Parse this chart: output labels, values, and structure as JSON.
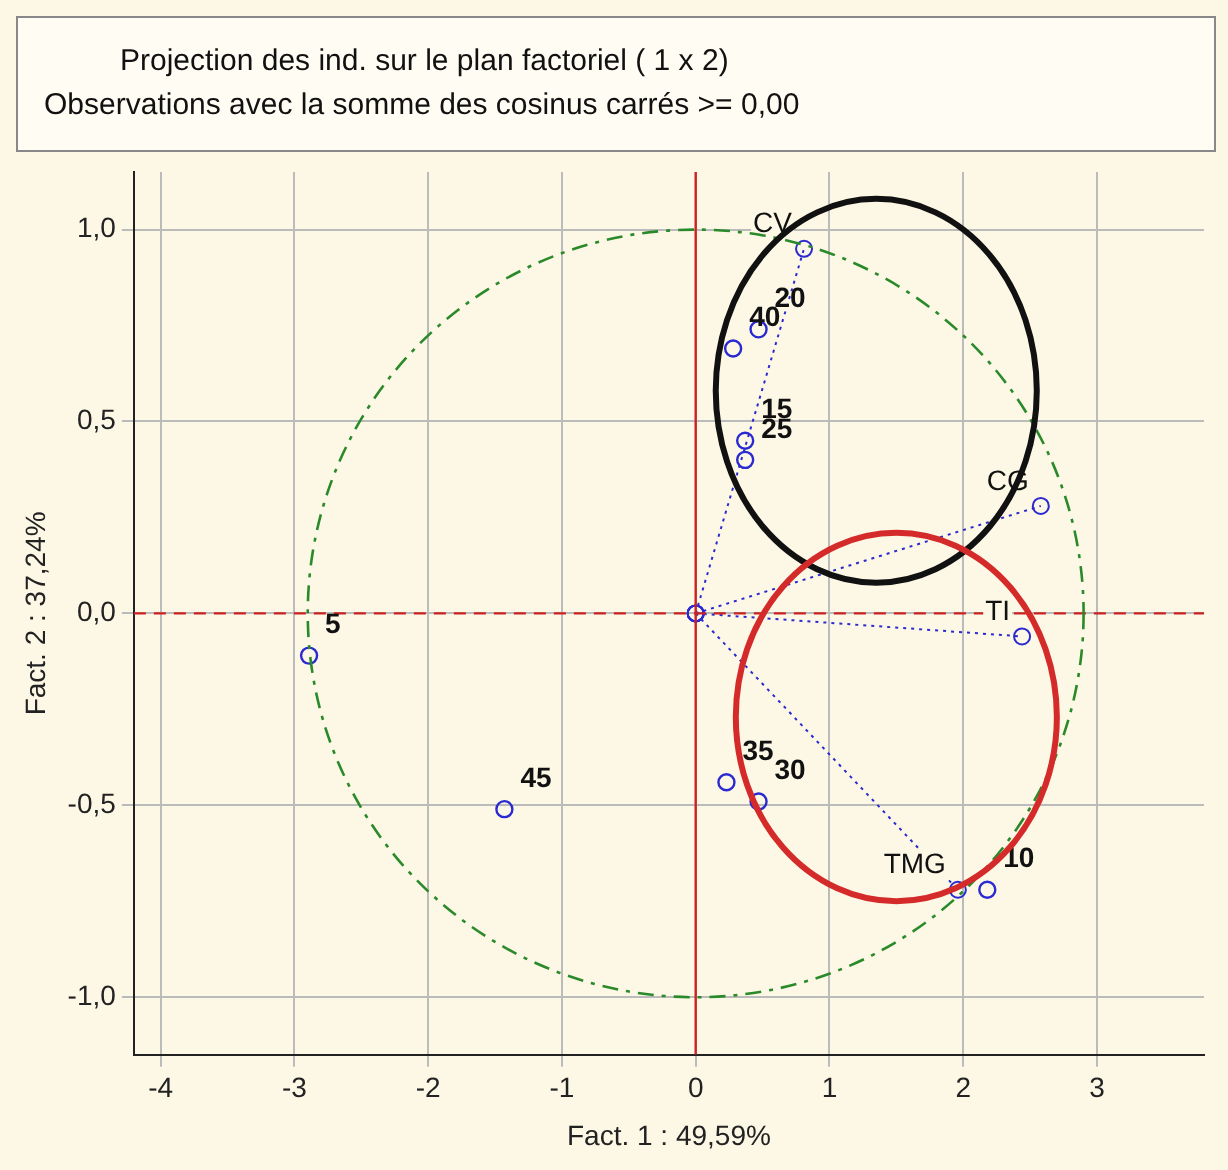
{
  "chart_data": {
    "type": "scatter",
    "title": "Projection des ind. sur le plan factoriel ( 1 x  2)",
    "subtitle": "Observations avec la somme des cosinus carrés >= 0,00",
    "xlabel": "Fact. 1 : 49,59%",
    "ylabel": "Fact. 2 : 37,24%",
    "xlim": [
      -4.2,
      3.8
    ],
    "xticks": [
      -4,
      -3,
      -2,
      -1,
      0,
      1,
      2,
      3
    ],
    "ylim": [
      -1.15,
      1.15
    ],
    "yticks": [
      {
        "value": -1,
        "label": "-1,0"
      },
      {
        "value": -0.5,
        "label": "-0,5"
      },
      {
        "value": 0,
        "label": "0,0"
      },
      {
        "value": 0.5,
        "label": "0,5"
      },
      {
        "value": 1,
        "label": "1,0"
      }
    ],
    "grid": true,
    "legend": false,
    "marker": "circle",
    "series": [
      {
        "type": "line",
        "x": [
          0,
          0.81
        ],
        "values": [
          0,
          0.95
        ],
        "color": "#2a2ad0",
        "line_style": "dotted"
      },
      {
        "type": "line",
        "x": [
          0,
          2.58
        ],
        "values": [
          0,
          0.28
        ],
        "color": "#2a2ad0",
        "line_style": "dotted"
      },
      {
        "type": "line",
        "x": [
          0,
          2.44
        ],
        "values": [
          0,
          -0.06
        ],
        "color": "#2a2ad0",
        "line_style": "dotted"
      },
      {
        "type": "line",
        "x": [
          0,
          1.96
        ],
        "values": [
          0,
          -0.72
        ],
        "color": "#2a2ad0",
        "line_style": "dotted"
      },
      {
        "x": [
          0.47,
          0.28,
          0.37,
          0.37,
          -2.89,
          -1.43,
          0.23,
          0.47,
          2.18
        ],
        "values": [
          0.74,
          0.69,
          0.45,
          0.4,
          -0.11,
          -0.51,
          -0.44,
          -0.49,
          -0.72
        ],
        "color": "#2a2ad0"
      }
    ],
    "ref_lines": [
      {
        "axis": "x",
        "value": 0,
        "color": "#cc2222",
        "line_style": "solid"
      },
      {
        "axis": "y",
        "value": 0,
        "color": "#cc2222",
        "line_style": "dashed"
      }
    ],
    "annotations": [
      {
        "text": "CV",
        "x": 0.81,
        "y": 0.95
      },
      {
        "text": "CG",
        "x": 2.58,
        "y": 0.28
      },
      {
        "text": "TI",
        "x": 2.44,
        "y": -0.06
      },
      {
        "text": "TMG",
        "x": 1.96,
        "y": -0.72
      },
      {
        "text": "20",
        "x": 0.47,
        "y": 0.74
      },
      {
        "text": "40",
        "x": 0.28,
        "y": 0.69
      },
      {
        "text": "15",
        "x": 0.37,
        "y": 0.45
      },
      {
        "text": "25",
        "x": 0.37,
        "y": 0.4
      },
      {
        "text": "5",
        "x": -2.89,
        "y": -0.11
      },
      {
        "text": "45",
        "x": -1.43,
        "y": -0.51
      },
      {
        "text": "35",
        "x": 0.23,
        "y": -0.44
      },
      {
        "text": "30",
        "x": 0.47,
        "y": -0.49
      },
      {
        "text": "10",
        "x": 2.18,
        "y": -0.72
      }
    ]
  }
}
